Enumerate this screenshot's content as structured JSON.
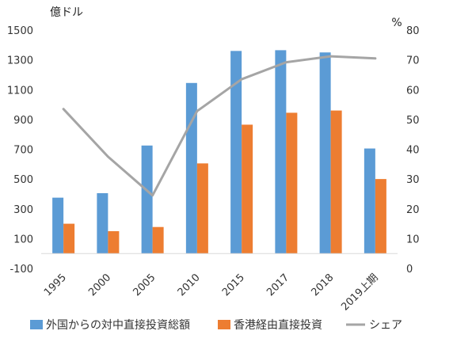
{
  "chart_data": {
    "type": "bar",
    "y_left_unit": "億ドル",
    "y_right_unit": "%",
    "ylim_left": [
      -100,
      1500
    ],
    "yticks_left": [
      -100,
      100,
      300,
      500,
      700,
      900,
      1100,
      1300,
      1500
    ],
    "ylim_right": [
      0,
      80
    ],
    "yticks_right": [
      0,
      10,
      20,
      30,
      40,
      50,
      60,
      70,
      80
    ],
    "categories": [
      "1995",
      "2000",
      "2005",
      "2010",
      "2015",
      "2017",
      "2018",
      "2019上期"
    ],
    "series": [
      {
        "name": "外国からの対中直接投資総額",
        "kind": "bar",
        "axis": "left",
        "color": "#5B9BD5",
        "values": [
          375,
          405,
          725,
          1145,
          1360,
          1365,
          1350,
          705
        ]
      },
      {
        "name": "香港経由直接投資",
        "kind": "bar",
        "axis": "left",
        "color": "#ED7D31",
        "values": [
          200,
          150,
          178,
          605,
          865,
          945,
          960,
          500
        ]
      },
      {
        "name": "シェア",
        "kind": "line",
        "axis": "right",
        "color": "#A5A5A5",
        "values": [
          53.5,
          37.5,
          24.5,
          52.8,
          63.5,
          69.2,
          71.2,
          70.5
        ]
      }
    ],
    "grid": false,
    "legend_position": "bottom"
  }
}
